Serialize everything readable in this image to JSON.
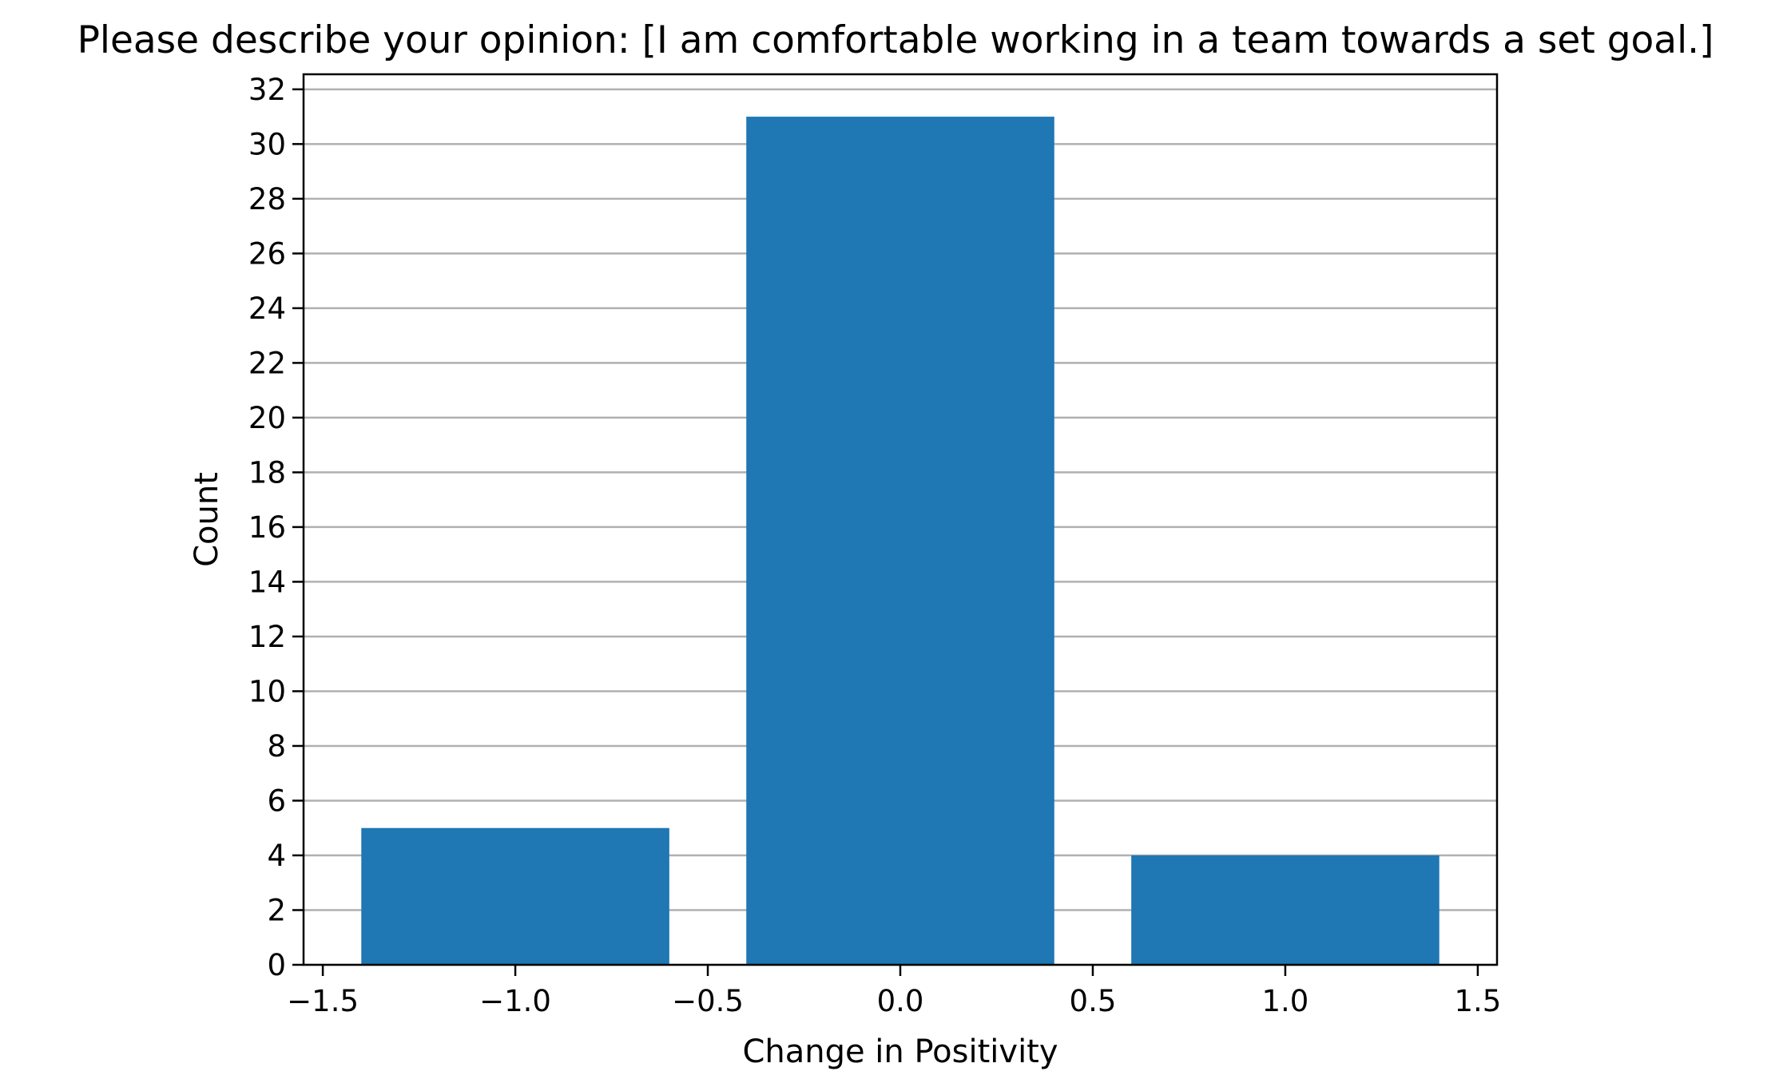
{
  "chart_data": {
    "type": "bar",
    "title": "Please describe your opinion: [I am comfortable working in a team towards a set goal.]",
    "xlabel": "Change in Positivity",
    "ylabel": "Count",
    "x": [
      -1,
      0,
      1
    ],
    "values": [
      5,
      31,
      4
    ],
    "bar_width": 0.8,
    "xlim": [
      -1.55,
      1.55
    ],
    "ylim": [
      0,
      32.55
    ],
    "xticks": [
      -1.5,
      -1.0,
      -0.5,
      0.0,
      0.5,
      1.0,
      1.5
    ],
    "xtick_labels": [
      "−1.5",
      "−1.0",
      "−0.5",
      "0.0",
      "0.5",
      "1.0",
      "1.5"
    ],
    "yticks": [
      0,
      2,
      4,
      6,
      8,
      10,
      12,
      14,
      16,
      18,
      20,
      22,
      24,
      26,
      28,
      30,
      32
    ],
    "ytick_labels": [
      "0",
      "2",
      "4",
      "6",
      "8",
      "10",
      "12",
      "14",
      "16",
      "18",
      "20",
      "22",
      "24",
      "26",
      "28",
      "30",
      "32"
    ],
    "grid": "horizontal",
    "bar_color": "#1f77b4"
  }
}
